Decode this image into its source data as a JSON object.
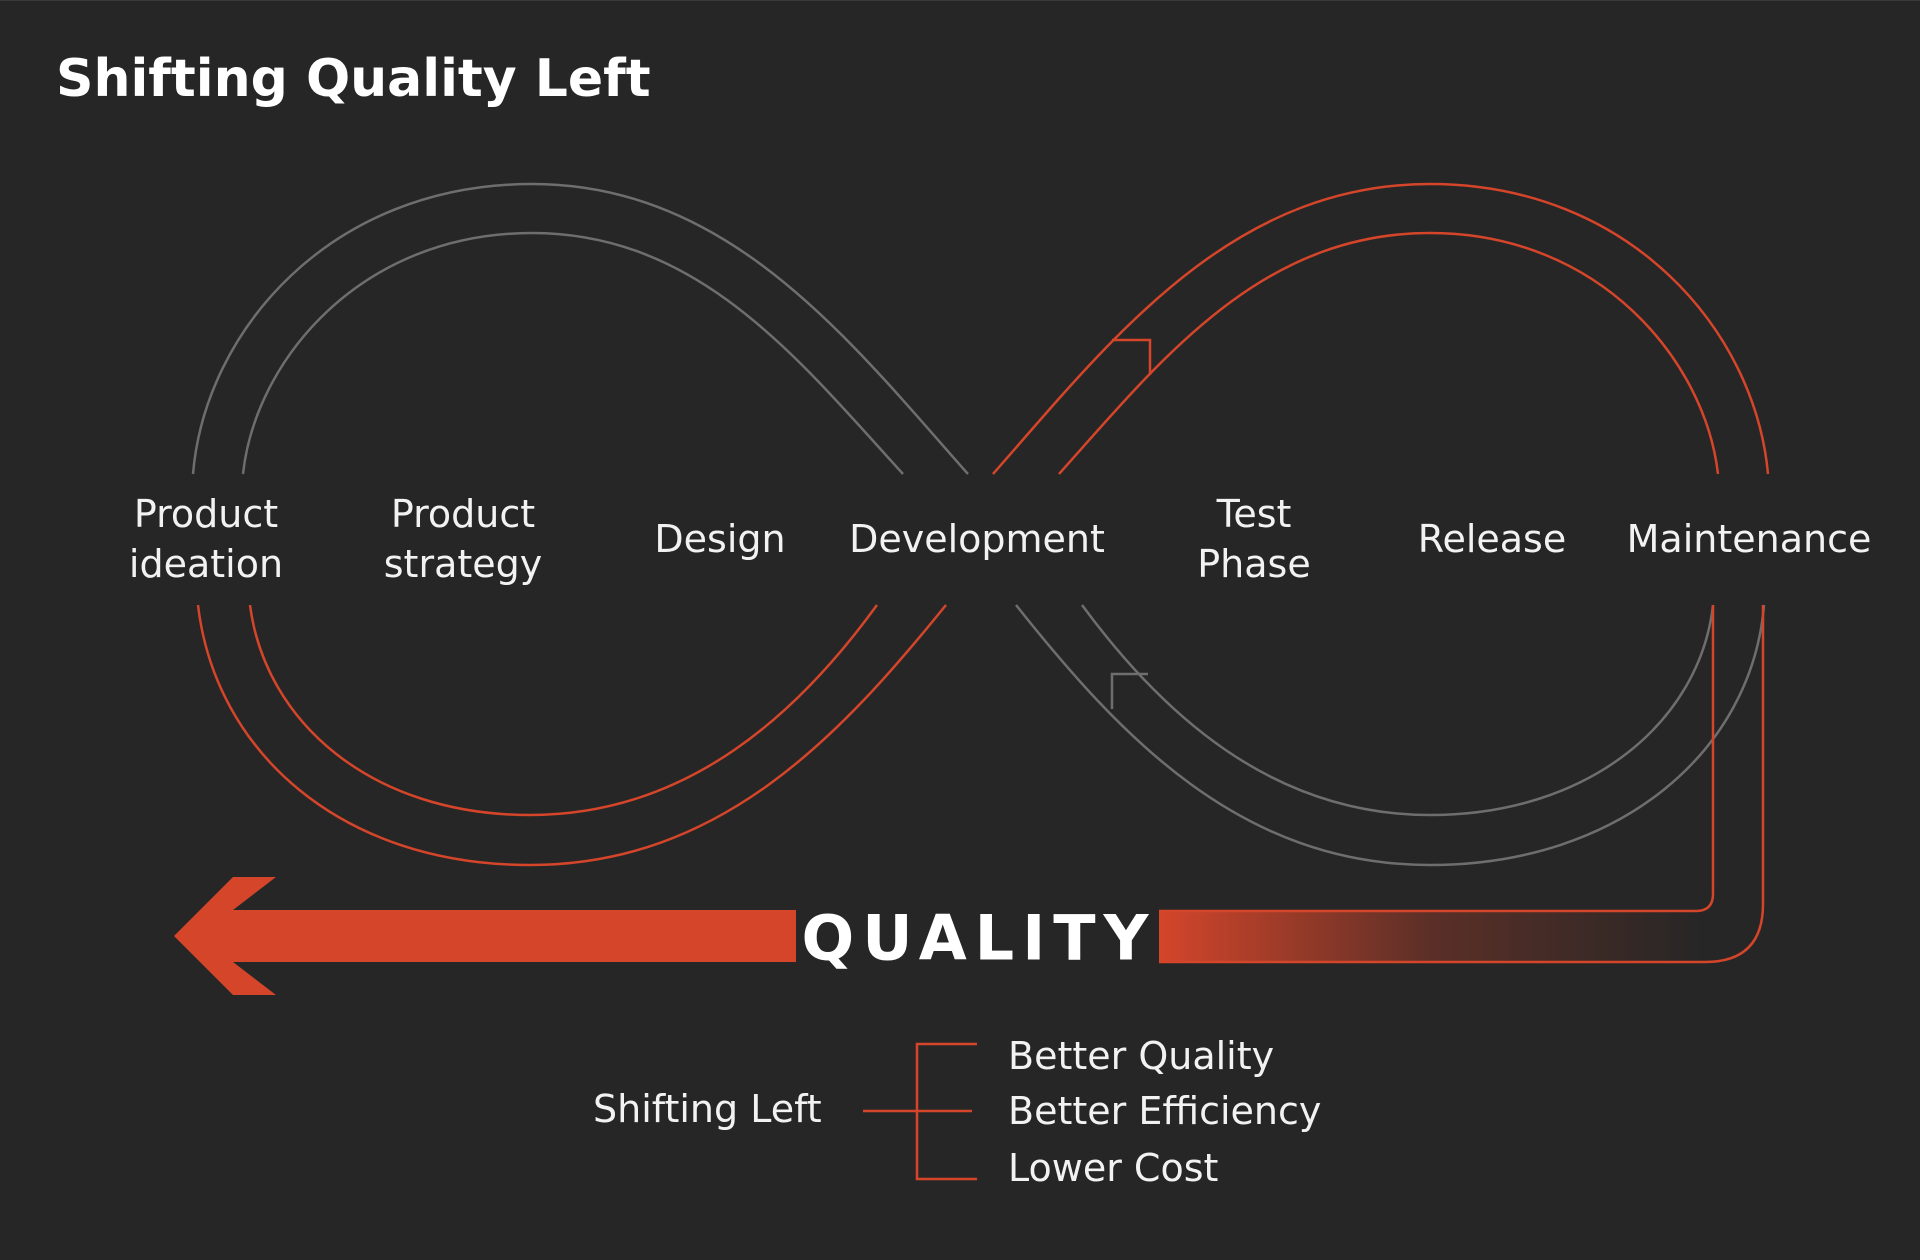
{
  "title": "Shifting Quality Left",
  "stages": [
    "Product\nideation",
    "Product\nstrategy",
    "Design",
    "Development",
    "Test\nPhase",
    "Release",
    "Maintenance"
  ],
  "quality_label": "QUALITY",
  "legend": {
    "source": "Shifting Left",
    "benefits": [
      "Better Quality",
      "Better Efficiency",
      "Lower Cost"
    ]
  },
  "colors": {
    "background": "#262626",
    "accent": "#d4452a",
    "neutral_line": "#6e6e6e",
    "text": "#f2f2f2"
  }
}
